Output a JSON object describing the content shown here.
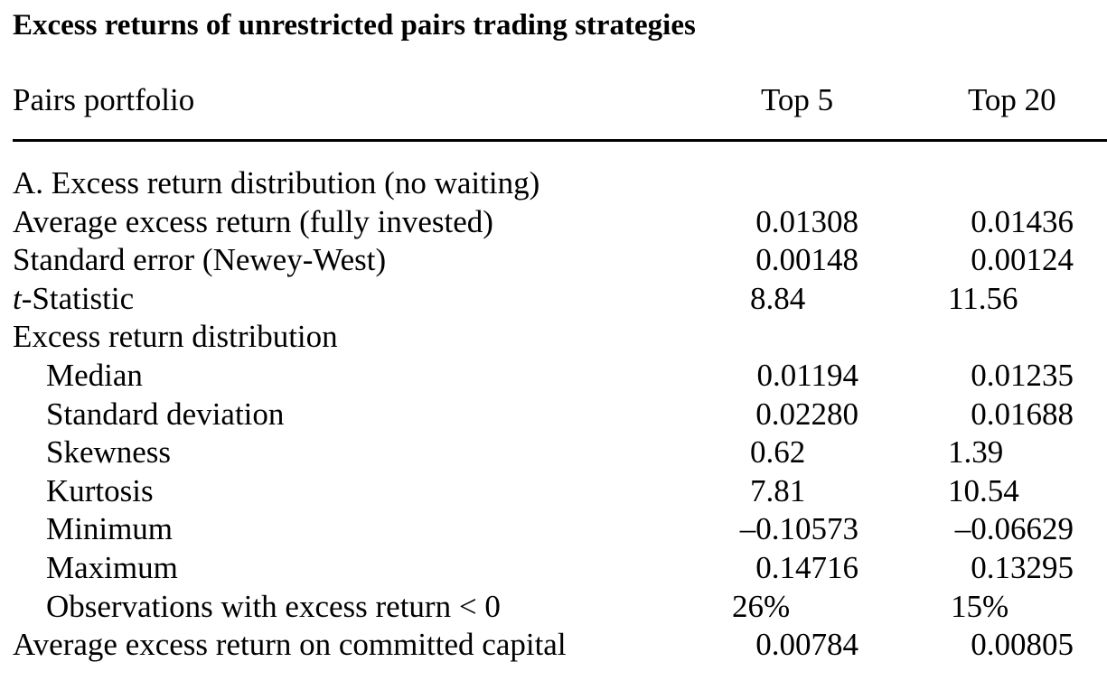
{
  "title": "Excess returns of unrestricted pairs trading strategies",
  "header": {
    "label": "Pairs portfolio",
    "col1": "Top 5",
    "col2": "Top 20"
  },
  "section_a": {
    "heading": "A. Excess return distribution (no waiting)",
    "avg_label": "Average excess return (fully invested)",
    "avg_top5": "0.01308",
    "avg_top20": "0.01436",
    "se_label": "Standard error (Newey-West)",
    "se_top5": "0.00148",
    "se_top20": "0.00124",
    "t_italic": "t",
    "t_rest": "-Statistic",
    "t_top5": "8.84",
    "t_top20": "11.56",
    "dist_heading": "Excess return distribution",
    "median_label": "Median",
    "median_top5": "0.01194",
    "median_top20": "0.01235",
    "sd_label": "Standard deviation",
    "sd_top5": "0.02280",
    "sd_top20": "0.01688",
    "skew_label": "Skewness",
    "skew_top5": "0.62",
    "skew_top20": "1.39",
    "kurt_label": "Kurtosis",
    "kurt_top5": "7.81",
    "kurt_top20": "10.54",
    "min_label": "Minimum",
    "min_top5": "–0.10573",
    "min_top20": "–0.06629",
    "max_label": "Maximum",
    "max_top5": "0.14716",
    "max_top20": "0.13295",
    "obs_label": "Observations with excess return < 0",
    "obs_top5": "26%",
    "obs_top20": "15%",
    "committed_label": "Average excess return on committed capital",
    "committed_top5": "0.00784",
    "committed_top20": "0.00805"
  }
}
